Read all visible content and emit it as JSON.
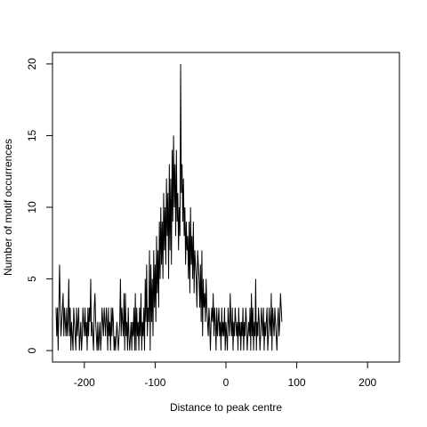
{
  "chart_data": {
    "type": "line",
    "title": "",
    "xlabel": "Distance to peak centre",
    "ylabel": "Number of motif occurrences",
    "xlim": [
      -245,
      245
    ],
    "ylim": [
      -0.8,
      20.8
    ],
    "x_ticks": [
      -200,
      -100,
      0,
      100,
      200
    ],
    "x_tick_labels": [
      "-200",
      "-100",
      "0",
      "100",
      "200"
    ],
    "y_ticks": [
      0,
      5,
      10,
      15,
      20
    ],
    "y_tick_labels": [
      "0",
      "5",
      "10",
      "15",
      "20"
    ],
    "grid": false,
    "legend": "none",
    "line_color": "#000000",
    "x_start": -240,
    "x_step": 1,
    "series": [
      {
        "values": [
          3,
          1,
          3,
          0,
          3,
          6,
          3,
          1,
          2,
          3,
          4,
          1,
          3,
          2,
          1,
          3,
          1,
          2,
          5,
          1,
          3,
          0,
          2,
          1,
          0,
          3,
          2,
          1,
          0,
          3,
          1,
          2,
          3,
          0,
          1,
          2,
          0,
          1,
          3,
          2,
          1,
          3,
          1,
          2,
          0,
          3,
          1,
          3,
          2,
          5,
          1,
          2,
          1,
          0,
          3,
          4,
          2,
          1,
          0,
          2,
          0,
          1,
          2,
          0,
          1,
          3,
          2,
          1,
          3,
          2,
          1,
          3,
          2,
          0,
          3,
          1,
          2,
          0,
          3,
          1,
          3,
          2,
          0,
          1,
          0,
          1,
          2,
          1,
          0,
          1,
          2,
          5,
          1,
          3,
          2,
          1,
          4,
          0,
          4,
          1,
          2,
          0,
          3,
          1,
          0,
          1,
          2,
          0,
          2,
          1,
          3,
          0,
          4,
          0,
          3,
          1,
          2,
          0,
          3,
          1,
          4,
          0,
          2,
          1,
          3,
          0,
          5,
          2,
          6,
          1,
          3,
          2,
          7,
          0,
          6,
          2,
          5,
          1,
          7,
          3,
          6,
          2,
          8,
          4,
          7,
          3,
          9,
          5,
          10,
          6,
          9,
          5,
          11,
          7,
          10,
          6,
          12,
          8,
          11,
          5,
          13,
          7,
          12,
          6,
          14,
          9,
          15,
          10,
          13,
          8,
          14,
          9,
          11,
          7,
          10,
          8,
          20,
          11,
          13,
          9,
          12,
          8,
          10,
          6,
          9,
          7,
          8,
          5,
          9,
          4,
          10,
          6,
          8,
          5,
          9,
          4,
          7,
          6,
          5,
          3,
          7,
          6,
          5,
          3,
          6,
          2,
          7,
          1,
          5,
          3,
          4,
          2,
          5,
          3,
          2,
          1,
          3,
          2,
          0,
          2,
          3,
          2,
          4,
          1,
          3,
          2,
          0,
          3,
          1,
          2,
          3,
          1,
          2,
          0,
          3,
          1,
          2,
          1,
          3,
          0,
          2,
          1,
          0,
          3,
          2,
          1,
          4,
          2,
          1,
          3,
          0,
          2,
          1,
          3,
          2,
          1,
          2,
          0,
          3,
          1,
          2,
          0,
          2,
          1,
          3,
          0,
          2,
          1,
          3,
          2,
          0,
          1,
          2,
          1,
          3,
          0,
          4,
          1,
          3,
          0,
          2,
          1,
          5,
          0,
          2,
          1,
          3,
          2,
          0,
          1,
          3,
          2,
          1,
          3,
          0,
          2,
          1,
          2,
          3,
          0,
          1,
          3,
          2,
          1,
          4,
          0,
          3,
          2,
          1,
          3,
          2,
          1,
          0,
          2,
          3,
          1,
          2,
          4,
          3,
          2
        ]
      }
    ]
  }
}
